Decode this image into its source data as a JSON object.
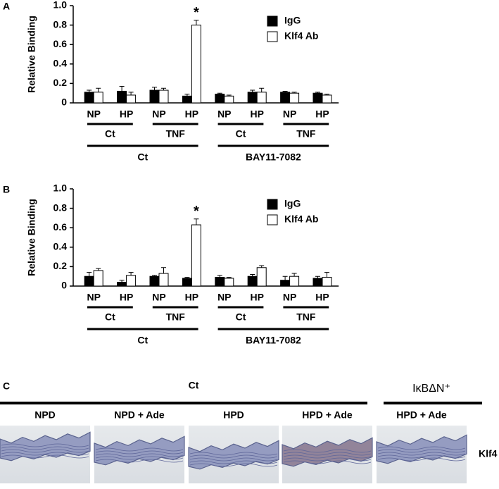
{
  "chart_data": [
    {
      "type": "bar",
      "panel_label": "A",
      "ylabel": "Relative Binding",
      "annotation": "*",
      "legend": "upper right",
      "categories": [
        "NP",
        "HP",
        "NP",
        "HP",
        "NP",
        "HP",
        "NP",
        "HP"
      ],
      "subgroups": [
        "Ct",
        "TNF",
        "Ct",
        "TNF"
      ],
      "groups": [
        "Ct",
        "BAY11-7082"
      ],
      "series": [
        {
          "name": "IgG",
          "color": "#000000",
          "values": [
            0.11,
            0.12,
            0.13,
            0.07,
            0.09,
            0.11,
            0.11,
            0.1
          ],
          "errors": [
            0.02,
            0.05,
            0.03,
            0.02,
            0.01,
            0.02,
            0.01,
            0.01
          ]
        },
        {
          "name": "Klf4 Ab",
          "color": "#ffffff",
          "values": [
            0.11,
            0.08,
            0.13,
            0.8,
            0.07,
            0.11,
            0.1,
            0.08
          ],
          "errors": [
            0.04,
            0.03,
            0.02,
            0.05,
            0.01,
            0.04,
            0.01,
            0.01
          ]
        }
      ],
      "ylim": [
        0,
        1
      ],
      "yticks": [
        0,
        0.2,
        0.4,
        0.6,
        0.8,
        {
          "value": 1,
          "label": "1.0"
        }
      ]
    },
    {
      "type": "bar",
      "panel_label": "B",
      "ylabel": "Relative Binding",
      "annotation": "*",
      "legend": "upper right",
      "categories": [
        "NP",
        "HP",
        "NP",
        "HP",
        "NP",
        "HP",
        "NP",
        "HP"
      ],
      "subgroups": [
        "Ct",
        "TNF",
        "Ct",
        "TNF"
      ],
      "groups": [
        "Ct",
        "BAY11-7082"
      ],
      "series": [
        {
          "name": "IgG",
          "color": "#000000",
          "values": [
            0.1,
            0.04,
            0.1,
            0.08,
            0.09,
            0.1,
            0.06,
            0.08
          ],
          "errors": [
            0.04,
            0.02,
            0.01,
            0.01,
            0.02,
            0.02,
            0.04,
            0.02
          ]
        },
        {
          "name": "Klf4 Ab",
          "color": "#ffffff",
          "values": [
            0.16,
            0.11,
            0.13,
            0.63,
            0.08,
            0.19,
            0.1,
            0.09
          ],
          "errors": [
            0.02,
            0.03,
            0.06,
            0.06,
            0.01,
            0.02,
            0.03,
            0.05
          ]
        }
      ],
      "ylim": [
        0,
        1
      ],
      "yticks": [
        0,
        0.2,
        0.4,
        0.6,
        0.8,
        {
          "value": 1,
          "label": "1.0"
        }
      ]
    }
  ],
  "panel_c": {
    "panel_label": "C",
    "group_ct": "Ct",
    "group_ikb": "IκBΔN⁺",
    "columns": [
      "NPD",
      "NPD + Ade",
      "HPD",
      "HPD + Ade",
      "HPD + Ade"
    ],
    "row_label": "Klf4"
  }
}
